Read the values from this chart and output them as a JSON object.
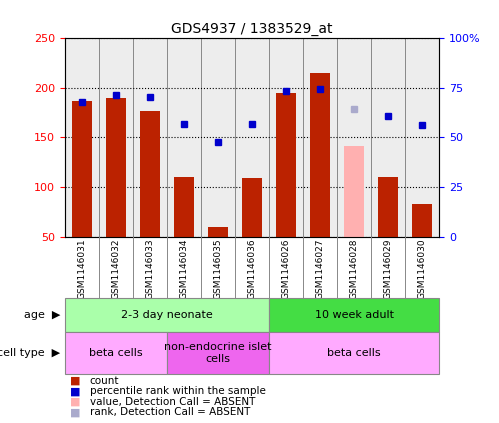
{
  "title": "GDS4937 / 1383529_at",
  "samples": [
    "GSM1146031",
    "GSM1146032",
    "GSM1146033",
    "GSM1146034",
    "GSM1146035",
    "GSM1146036",
    "GSM1146026",
    "GSM1146027",
    "GSM1146028",
    "GSM1146029",
    "GSM1146030"
  ],
  "bar_values": [
    187,
    190,
    177,
    110,
    60,
    109,
    195,
    215,
    null,
    110,
    83
  ],
  "bar_absent": [
    null,
    null,
    null,
    null,
    null,
    null,
    null,
    null,
    141,
    null,
    null
  ],
  "rank_values": [
    186,
    193,
    191,
    164,
    145,
    164,
    197,
    199,
    null,
    172,
    163
  ],
  "rank_absent": [
    null,
    null,
    null,
    null,
    null,
    null,
    null,
    null,
    179,
    null,
    null
  ],
  "bar_color": "#bb2200",
  "bar_absent_color": "#ffb0b0",
  "rank_color": "#0000cc",
  "rank_absent_color": "#aaaacc",
  "ylim_left": [
    50,
    250
  ],
  "ylim_right": [
    0,
    100
  ],
  "yticks_left": [
    50,
    100,
    150,
    200,
    250
  ],
  "yticks_right": [
    0,
    25,
    50,
    75,
    100
  ],
  "ytick_labels_right": [
    "0",
    "25",
    "50",
    "75",
    "100%"
  ],
  "age_groups": [
    {
      "label": "2-3 day neonate",
      "start": 0,
      "end": 6,
      "color": "#aaffaa"
    },
    {
      "label": "10 week adult",
      "start": 6,
      "end": 11,
      "color": "#44dd44"
    }
  ],
  "cell_type_groups": [
    {
      "label": "beta cells",
      "start": 0,
      "end": 3,
      "color": "#ffaaff"
    },
    {
      "label": "non-endocrine islet\ncells",
      "start": 3,
      "end": 6,
      "color": "#ee66ee"
    },
    {
      "label": "beta cells",
      "start": 6,
      "end": 11,
      "color": "#ffaaff"
    }
  ],
  "legend_items": [
    {
      "label": "count",
      "color": "#bb2200"
    },
    {
      "label": "percentile rank within the sample",
      "color": "#0000cc"
    },
    {
      "label": "value, Detection Call = ABSENT",
      "color": "#ffb0b0"
    },
    {
      "label": "rank, Detection Call = ABSENT",
      "color": "#aaaacc"
    }
  ],
  "bar_width": 0.6,
  "col_bg_color": "#cccccc",
  "spine_color": "#888888",
  "grid_color": "#000000"
}
